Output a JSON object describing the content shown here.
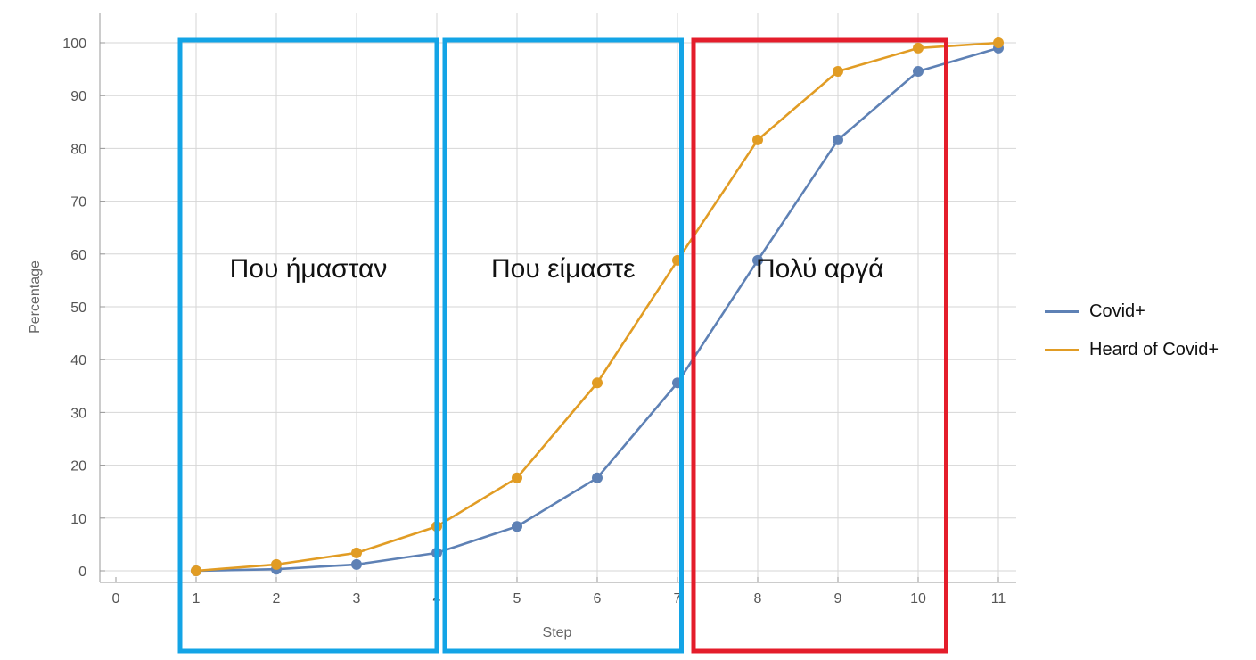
{
  "chart_data": {
    "type": "line",
    "xlabel": "Step",
    "ylabel": "Percentage",
    "xlim": [
      0,
      11
    ],
    "ylim": [
      0,
      100
    ],
    "x_ticks": [
      0,
      1,
      2,
      3,
      4,
      5,
      6,
      7,
      8,
      9,
      10,
      11
    ],
    "y_ticks": [
      0,
      10,
      20,
      30,
      40,
      50,
      60,
      70,
      80,
      90,
      100
    ],
    "grid": true,
    "legend_position": "right",
    "x": [
      1,
      2,
      3,
      4,
      5,
      6,
      7,
      8,
      9,
      10,
      11
    ],
    "series": [
      {
        "name": "Covid+",
        "color": "#5e81b5",
        "values": [
          0,
          0.3,
          1.2,
          3.4,
          8.4,
          17.6,
          35.6,
          58.8,
          81.6,
          94.6,
          99
        ]
      },
      {
        "name": "Heard of Covid+",
        "color": "#e19c24",
        "values": [
          0,
          1.2,
          3.4,
          8.4,
          17.6,
          35.6,
          58.8,
          81.6,
          94.6,
          99,
          100
        ]
      }
    ],
    "regions": [
      {
        "label": "Που ήμασταν",
        "color": "#13a4e6",
        "x_range": [
          0.8,
          4
        ]
      },
      {
        "label": "Που είμαστε",
        "color": "#13a4e6",
        "x_range": [
          4.1,
          7.05
        ]
      },
      {
        "label": "Πολύ αργά",
        "color": "#e41d2b",
        "x_range": [
          7.2,
          10.35
        ]
      }
    ]
  }
}
